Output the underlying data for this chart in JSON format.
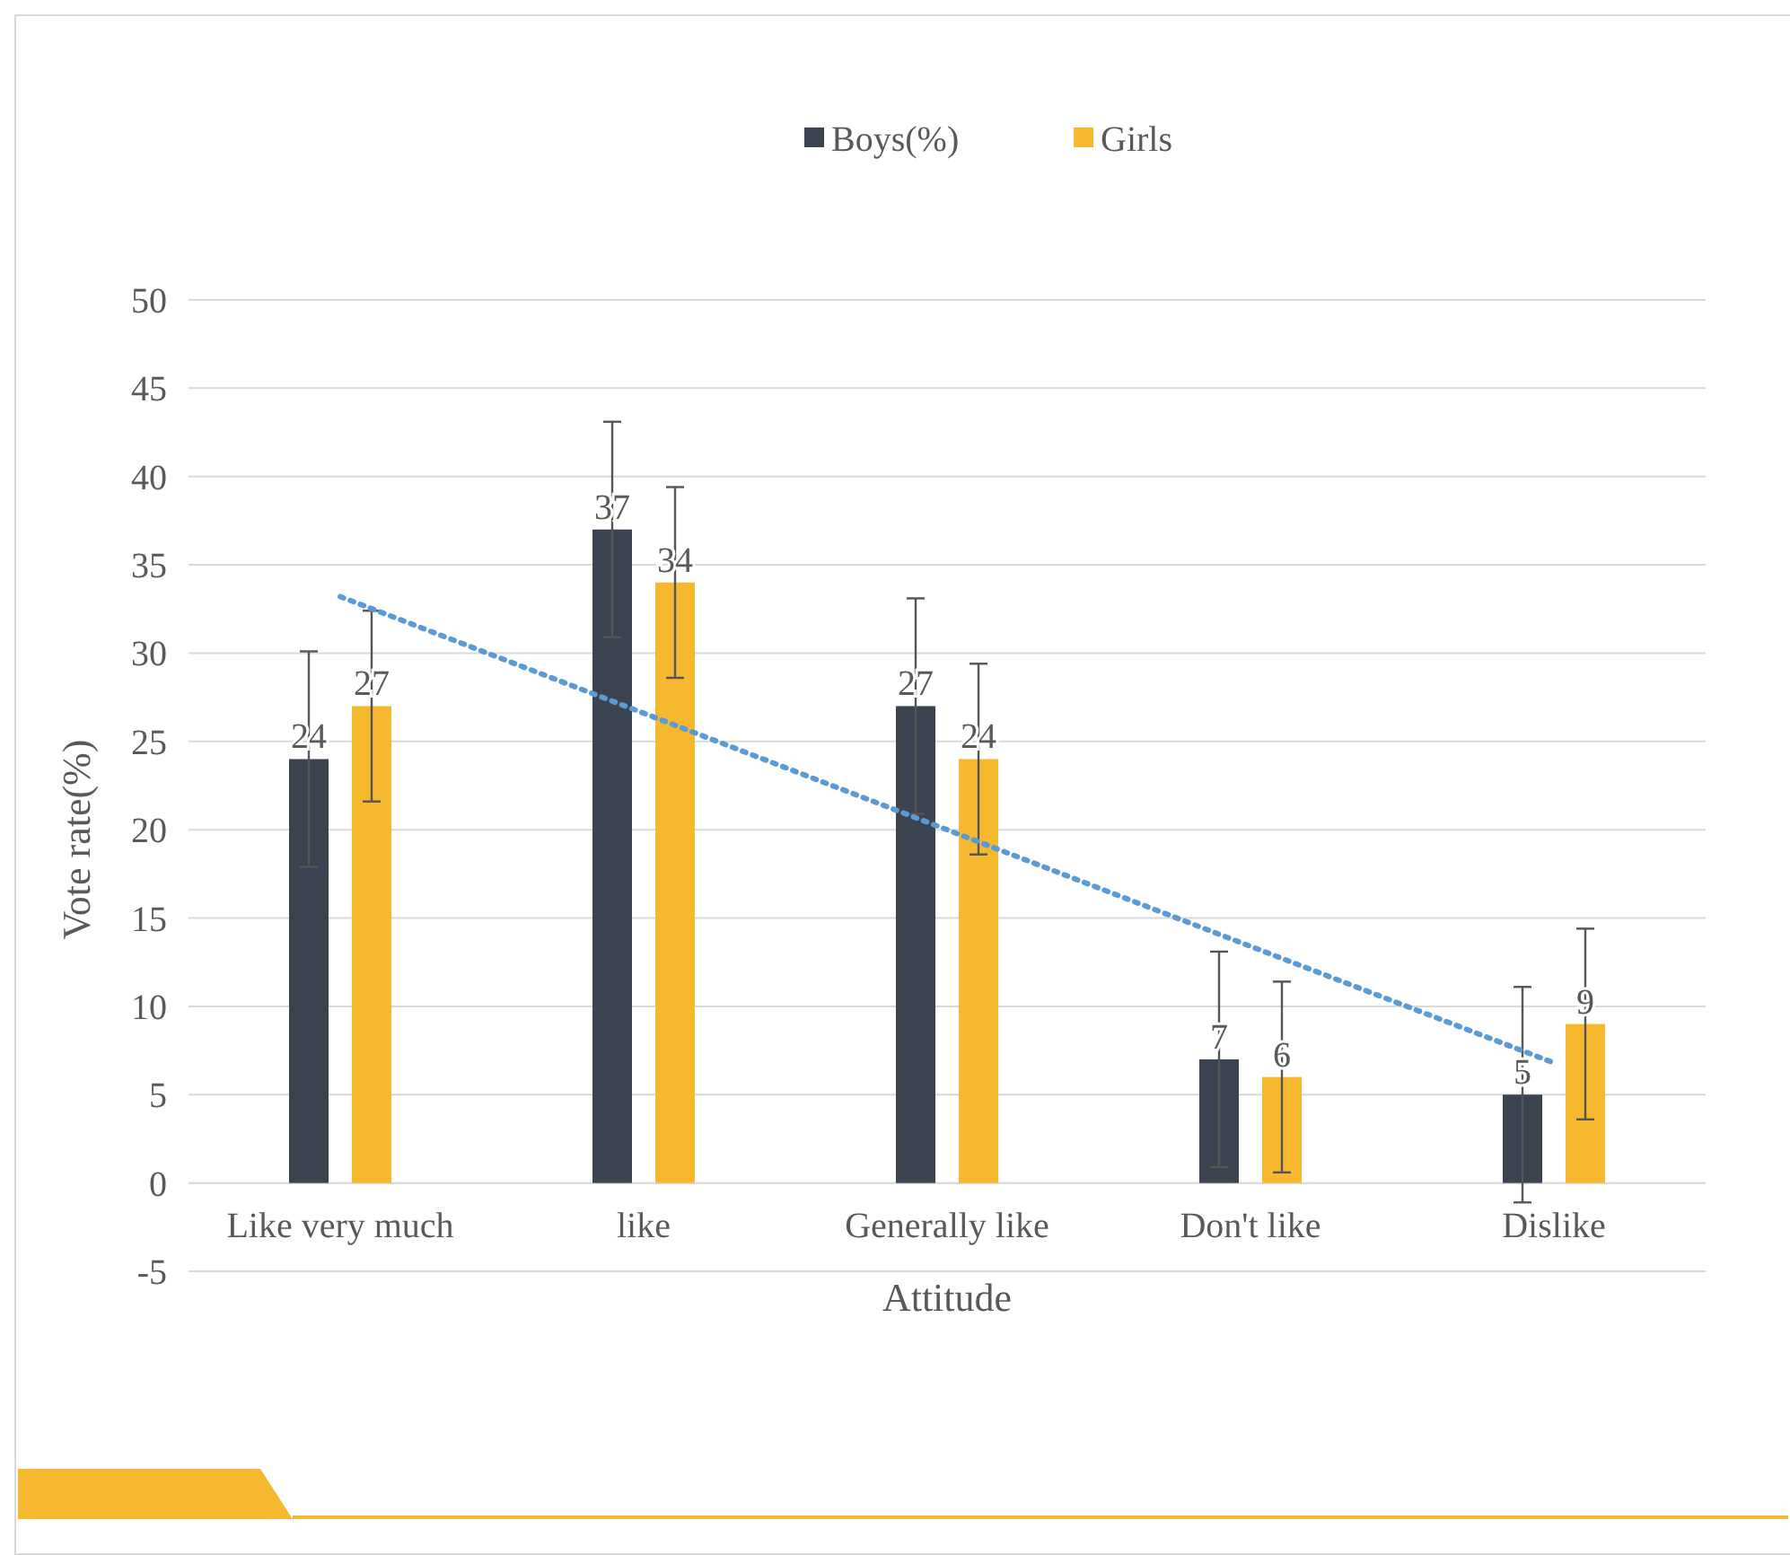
{
  "chart_data": {
    "type": "bar",
    "xlabel": "Attitude",
    "ylabel": "Vote rate(%)",
    "categories": [
      "Like very much",
      "like",
      "Generally like",
      "Don't like",
      "Dislike"
    ],
    "series": [
      {
        "name": "Boys(%)",
        "color": "#3b4250",
        "values": [
          24,
          37,
          27,
          7,
          5
        ],
        "value_labels": [
          "24",
          "37",
          "27",
          "7",
          "5"
        ],
        "errors": [
          6.1,
          6.1,
          6.1,
          6.1,
          6.1
        ]
      },
      {
        "name": "Girls",
        "color": "#f5b82e",
        "values": [
          27,
          34,
          24,
          6,
          9
        ],
        "value_labels": [
          "27",
          "34",
          "24",
          "6",
          "9"
        ],
        "errors": [
          5.4,
          5.4,
          5.4,
          5.4,
          5.4
        ]
      },
      {
        "type": "line",
        "color": "#5b9bd5",
        "line_style": "dotted",
        "x": [
          "Like very much",
          "Dislike"
        ],
        "values": [
          33.2,
          6.8
        ]
      }
    ],
    "ylim": [
      -5,
      50
    ],
    "yticks": [
      -5,
      0,
      5,
      10,
      15,
      20,
      25,
      30,
      35,
      40,
      45,
      50
    ],
    "grid": "y",
    "legend": "top"
  }
}
